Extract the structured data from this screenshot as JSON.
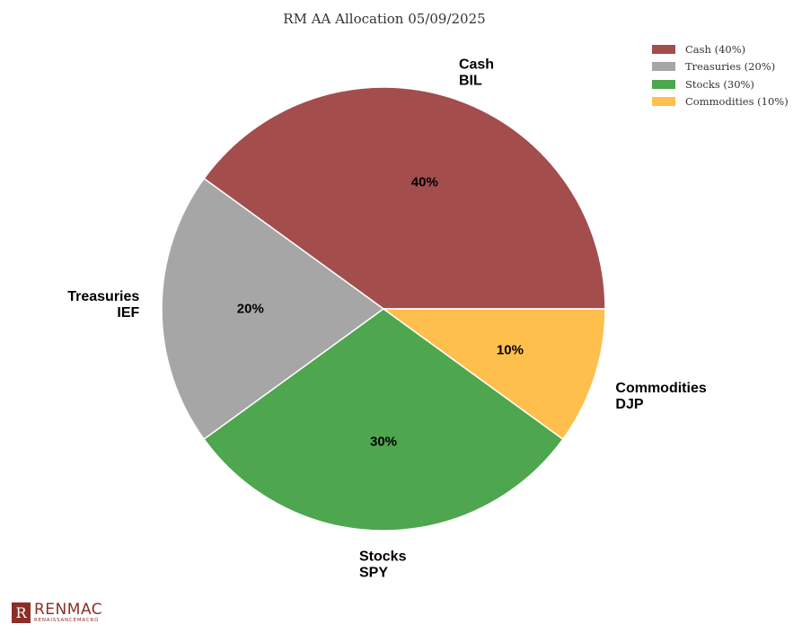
{
  "chart_data": {
    "type": "pie",
    "title": "RM AA Allocation 05/09/2025",
    "start_angle_deg": 0,
    "direction": "counterclockwise",
    "legend_position": "top-right",
    "slices": [
      {
        "name": "Cash",
        "ticker": "BIL",
        "value": 40,
        "pct_label": "40%",
        "legend_label": "Cash (40%)",
        "color": "#a34d4d"
      },
      {
        "name": "Treasuries",
        "ticker": "IEF",
        "value": 20,
        "pct_label": "20%",
        "legend_label": "Treasuries (20%)",
        "color": "#a6a6a6"
      },
      {
        "name": "Stocks",
        "ticker": "SPY",
        "value": 30,
        "pct_label": "30%",
        "legend_label": "Stocks (30%)",
        "color": "#4ea64e"
      },
      {
        "name": "Commodities",
        "ticker": "DJP",
        "value": 10,
        "pct_label": "10%",
        "legend_label": "Commodities (10%)",
        "color": "#ffbf4d"
      }
    ]
  },
  "logo": {
    "mark": "R",
    "name": "RENMAC",
    "tagline": "RENAISSANCEMACRO"
  }
}
